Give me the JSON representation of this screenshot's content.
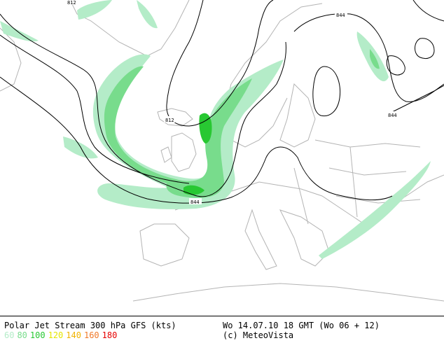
{
  "map": {
    "contour_labels": [
      {
        "id": "c812-top",
        "text": "812"
      },
      {
        "id": "c844-top",
        "text": "844"
      },
      {
        "id": "c812-mid",
        "text": "812"
      },
      {
        "id": "c844-mid",
        "text": "844"
      },
      {
        "id": "c844-right",
        "text": "844"
      }
    ],
    "colors": {
      "land_border": "#b4b4b4",
      "jet_60": "#b4ecc8",
      "jet_80": "#78dc8c",
      "jet_100": "#28c832",
      "contour": "#000000"
    }
  },
  "footer": {
    "title": "Polar Jet Stream 300 hPa GFS (kts)",
    "valid_time": "Wo 14.07.10 18 GMT (Wo 06 + 12)",
    "credit": "(c) MeteoVista",
    "legend": [
      {
        "label": "60",
        "color": "#b4ecc8"
      },
      {
        "label": "80",
        "color": "#78dc8c"
      },
      {
        "label": "100",
        "color": "#28c832"
      },
      {
        "label": "120",
        "color": "#e6e600"
      },
      {
        "label": "140",
        "color": "#f0b400"
      },
      {
        "label": "160",
        "color": "#f07828"
      },
      {
        "label": "180",
        "color": "#e60000"
      }
    ]
  }
}
